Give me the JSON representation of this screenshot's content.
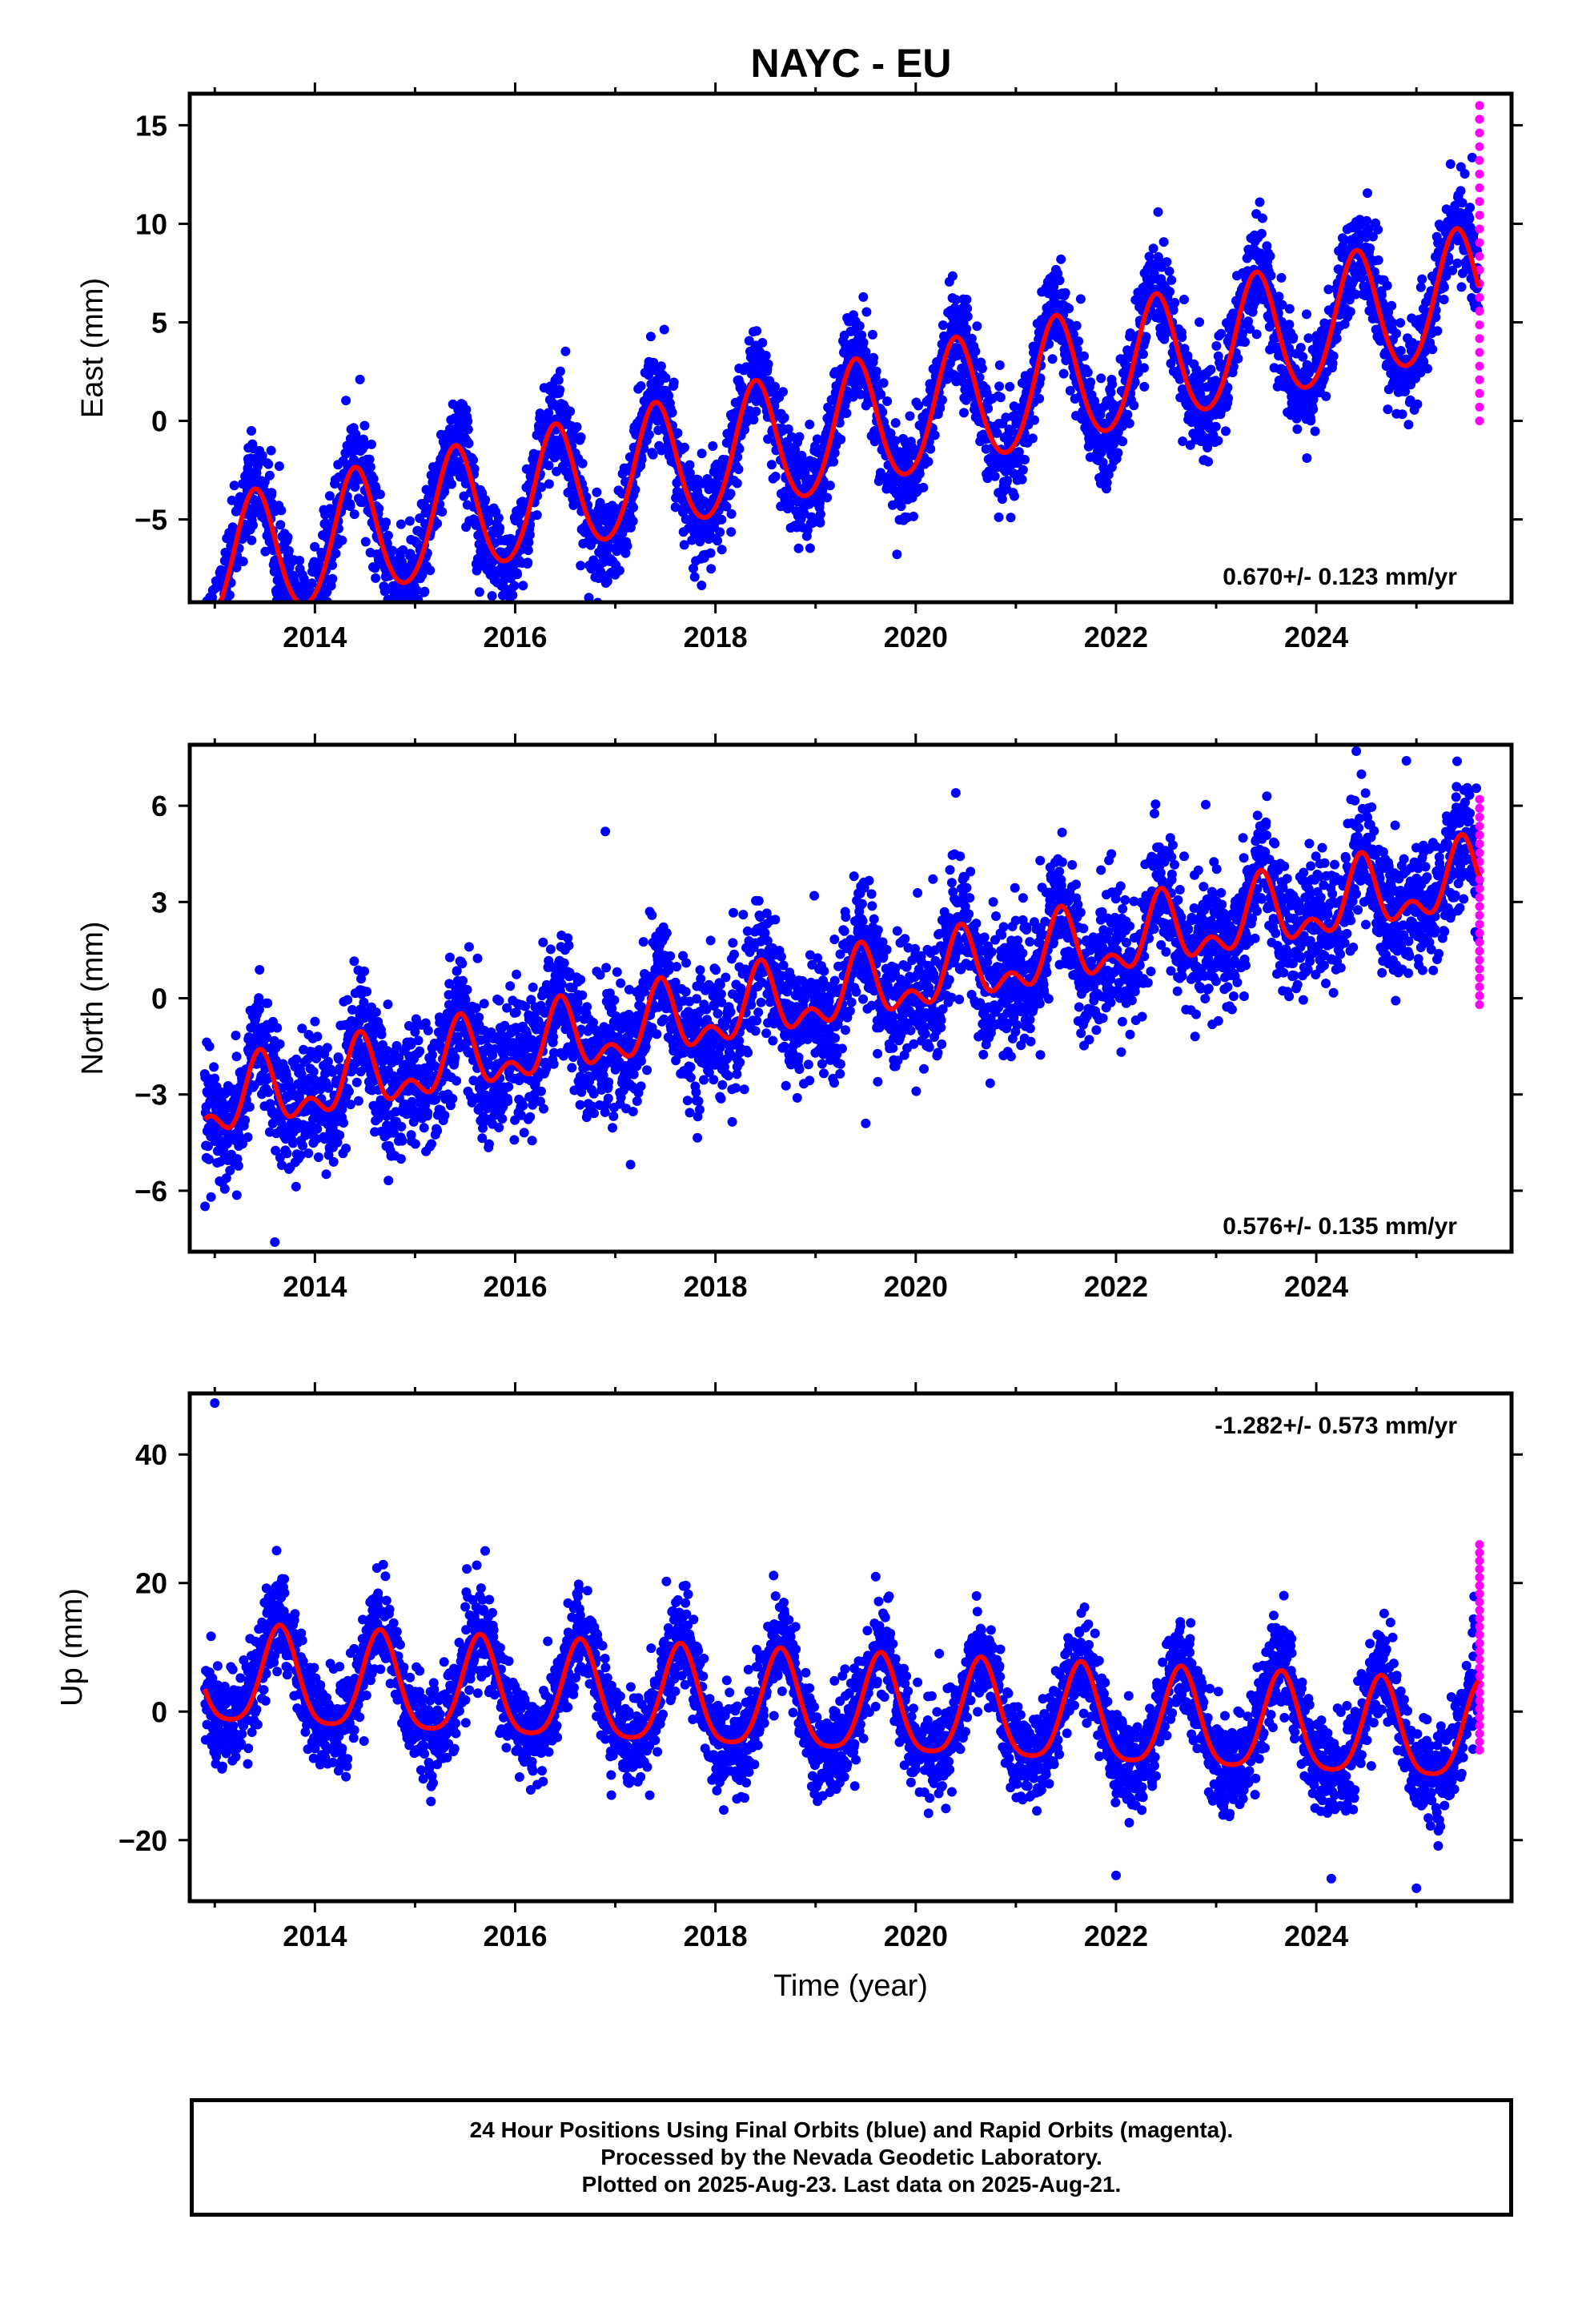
{
  "title": "NAYC - EU",
  "colors": {
    "final": "#0000ff",
    "rapid": "#ff00ff",
    "model": "#ff0000",
    "frame": "#000000"
  },
  "chart_data": [
    {
      "type": "scatter",
      "name": "east",
      "ylabel": "East (mm)",
      "xlabel": "",
      "xlim": [
        2012.75,
        2025.95
      ],
      "ylim": [
        -9.2,
        16.6
      ],
      "xticks": [
        2014,
        2016,
        2018,
        2020,
        2022,
        2024
      ],
      "yticks": [
        -5,
        0,
        5,
        10,
        15
      ],
      "rate_label": "0.670+/- 0.123 mm/yr",
      "rate_position": "bottom-right",
      "model": {
        "t0": 2012.9,
        "t1": 2025.62,
        "start": -7.5,
        "end": 6.5,
        "annual_amplitude": 3.2,
        "annual_peak": 2013.4,
        "semiannual_amplitude": 0.3
      },
      "scatter": {
        "annual_amplitude": 3.3,
        "noise": 1.2
      },
      "rapid": {
        "t": 2025.63,
        "min": 0,
        "max": 16,
        "count": 24
      },
      "outliers": [
        [
          2022.42,
          10.6
        ],
        [
          2023.4,
          10.5
        ],
        [
          2021.45,
          8.2
        ],
        [
          2012.98,
          -8.6
        ],
        [
          2014.45,
          2.1
        ]
      ]
    },
    {
      "type": "scatter",
      "name": "north",
      "ylabel": "North (mm)",
      "xlabel": "",
      "xlim": [
        2012.75,
        2025.95
      ],
      "ylim": [
        -7.9,
        7.9
      ],
      "xticks": [
        2014,
        2016,
        2018,
        2020,
        2022,
        2024
      ],
      "yticks": [
        -6,
        -3,
        0,
        3,
        6
      ],
      "rate_label": "0.576+/- 0.135 mm/yr",
      "rate_position": "bottom-right",
      "model": {
        "t0": 2012.9,
        "t1": 2025.62,
        "start": -3.4,
        "end": 3.7,
        "annual_amplitude": 0.9,
        "annual_peak": 2013.45,
        "semiannual_amplitude": 0.6
      },
      "scatter": {
        "annual_amplitude": 0.6,
        "noise": 1.0
      },
      "rapid": {
        "t": 2025.63,
        "min": -0.2,
        "max": 6.2,
        "count": 24
      },
      "outliers": [
        [
          2013.6,
          -7.6
        ],
        [
          2016.9,
          5.2
        ],
        [
          2024.4,
          7.7
        ],
        [
          2019.5,
          -3.9
        ],
        [
          2020.4,
          6.4
        ],
        [
          2024.9,
          7.4
        ]
      ]
    },
    {
      "type": "scatter",
      "name": "up",
      "ylabel": "Up (mm)",
      "xlabel": "Time (year)",
      "xlim": [
        2012.75,
        2025.95
      ],
      "ylim": [
        -29.5,
        49.5
      ],
      "xticks": [
        2014,
        2016,
        2018,
        2020,
        2022,
        2024
      ],
      "yticks": [
        -20,
        0,
        20,
        40
      ],
      "rate_label": "-1.282+/- 0.573 mm/yr",
      "rate_position": "top-right",
      "model": {
        "t0": 2012.9,
        "t1": 2025.62,
        "start": 5,
        "end": -4,
        "annual_amplitude": 7.5,
        "annual_peak": 2013.65,
        "semiannual_amplitude": 1.5
      },
      "scatter": {
        "annual_amplitude": 7.0,
        "noise": 3.6
      },
      "rapid": {
        "t": 2025.63,
        "min": -6,
        "max": 26,
        "count": 26
      },
      "outliers": [
        [
          2013.0,
          48
        ],
        [
          2015.7,
          25
        ],
        [
          2022.0,
          -25.5
        ],
        [
          2024.15,
          -26
        ],
        [
          2025.0,
          -27.5
        ],
        [
          2019.6,
          21
        ]
      ]
    }
  ],
  "footer": {
    "line1": "24 Hour Positions Using Final Orbits (blue) and Rapid Orbits (magenta).",
    "line2": "Processed by the Nevada Geodetic Laboratory.",
    "line3": "Plotted on 2025-Aug-23. Last data on 2025-Aug-21."
  }
}
